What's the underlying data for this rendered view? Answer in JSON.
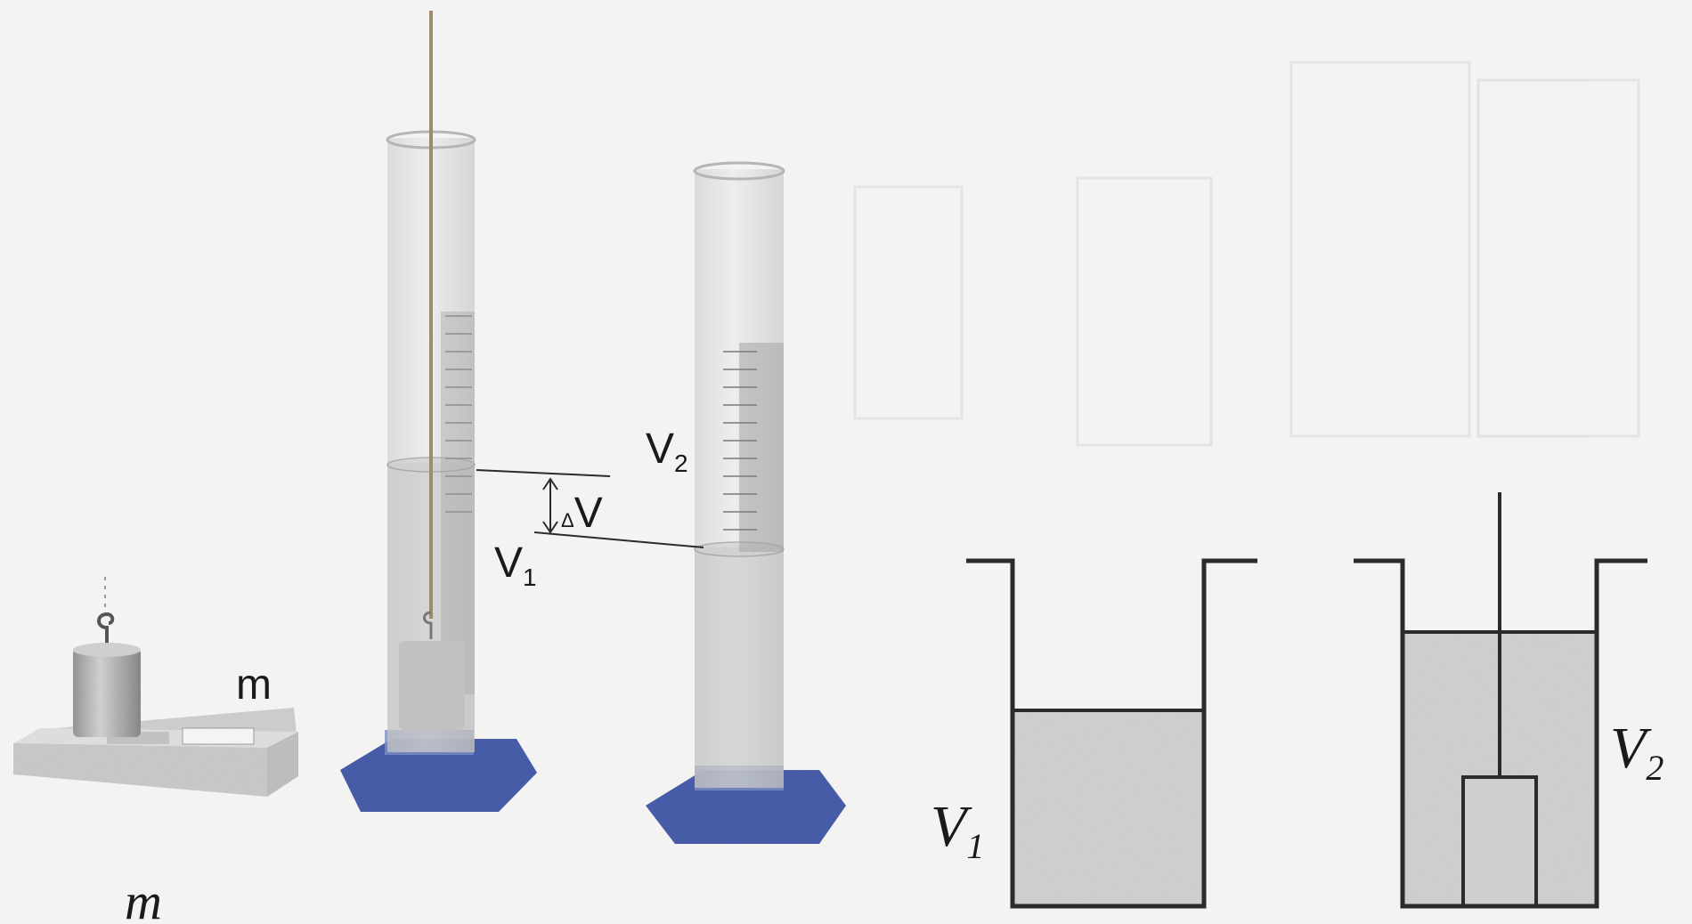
{
  "photo": {
    "mass_label": "m",
    "v2_label": "V",
    "v2_sub": "2",
    "dv_label": "V",
    "dv_prefix": "Δ",
    "v1_label": "V",
    "v1_sub": "1"
  },
  "schematic": {
    "v1_label": "V",
    "v1_sub": "1",
    "v2_label": "V",
    "v2_sub": "2"
  },
  "caption": {
    "m_label": "m"
  },
  "colors": {
    "line": "#2b2b2b",
    "liquid": "#d6d6d6",
    "base": "#4a5fae"
  }
}
